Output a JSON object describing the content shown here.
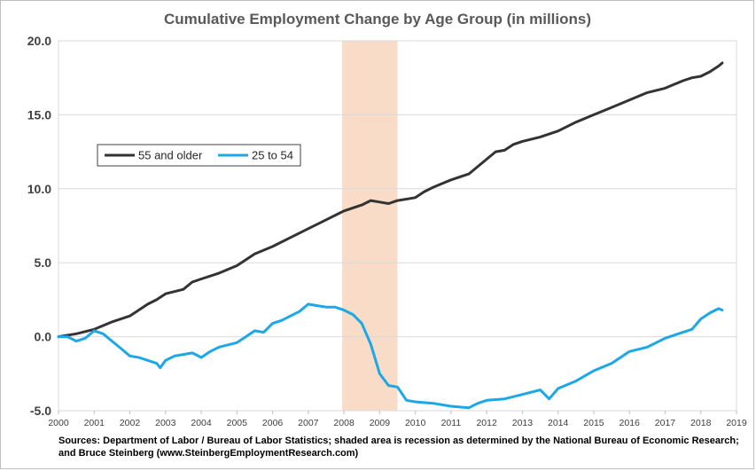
{
  "chart_data": {
    "type": "line",
    "title": "Cumulative Employment Change by Age Group (in millions)",
    "xlim": [
      2000,
      2019
    ],
    "ylim": [
      -5,
      20
    ],
    "x_ticks": [
      "2000",
      "2001",
      "2002",
      "2003",
      "2004",
      "2005",
      "2006",
      "2007",
      "2008",
      "2009",
      "2010",
      "2011",
      "2012",
      "2013",
      "2014",
      "2015",
      "2016",
      "2017",
      "2018",
      "2019"
    ],
    "y_ticks": [
      "20.0",
      "15.0",
      "10.0",
      "5.0",
      "0.0",
      "-5.0"
    ],
    "y_tick_values": [
      20,
      15,
      10,
      5,
      0,
      -5
    ],
    "grid": "horizontal",
    "legend_position": "upper-left",
    "recession_shading": {
      "start": 2007.95,
      "end": 2009.5,
      "color": "#f8dcc8"
    },
    "series": [
      {
        "name": "55 and older",
        "color": "#333333",
        "points": [
          [
            2000.0,
            0.0
          ],
          [
            2000.5,
            0.2
          ],
          [
            2001.0,
            0.5
          ],
          [
            2001.5,
            1.0
          ],
          [
            2002.0,
            1.4
          ],
          [
            2002.5,
            2.2
          ],
          [
            2002.75,
            2.5
          ],
          [
            2003.0,
            2.9
          ],
          [
            2003.5,
            3.2
          ],
          [
            2003.75,
            3.7
          ],
          [
            2004.0,
            3.9
          ],
          [
            2004.5,
            4.3
          ],
          [
            2005.0,
            4.8
          ],
          [
            2005.5,
            5.6
          ],
          [
            2006.0,
            6.1
          ],
          [
            2006.5,
            6.7
          ],
          [
            2007.0,
            7.3
          ],
          [
            2007.25,
            7.6
          ],
          [
            2007.5,
            7.9
          ],
          [
            2008.0,
            8.5
          ],
          [
            2008.5,
            8.9
          ],
          [
            2008.75,
            9.2
          ],
          [
            2009.0,
            9.1
          ],
          [
            2009.25,
            9.0
          ],
          [
            2009.5,
            9.2
          ],
          [
            2010.0,
            9.4
          ],
          [
            2010.25,
            9.8
          ],
          [
            2010.5,
            10.1
          ],
          [
            2011.0,
            10.6
          ],
          [
            2011.5,
            11.0
          ],
          [
            2012.0,
            12.0
          ],
          [
            2012.25,
            12.5
          ],
          [
            2012.5,
            12.6
          ],
          [
            2012.75,
            13.0
          ],
          [
            2013.0,
            13.2
          ],
          [
            2013.5,
            13.5
          ],
          [
            2014.0,
            13.9
          ],
          [
            2014.5,
            14.5
          ],
          [
            2015.0,
            15.0
          ],
          [
            2015.5,
            15.5
          ],
          [
            2016.0,
            16.0
          ],
          [
            2016.5,
            16.5
          ],
          [
            2017.0,
            16.8
          ],
          [
            2017.5,
            17.3
          ],
          [
            2017.75,
            17.5
          ],
          [
            2018.0,
            17.6
          ],
          [
            2018.25,
            17.9
          ],
          [
            2018.5,
            18.3
          ],
          [
            2018.6,
            18.5
          ]
        ]
      },
      {
        "name": "25 to 54",
        "color": "#1ca8e6",
        "points": [
          [
            2000.0,
            0.0
          ],
          [
            2000.25,
            0.0
          ],
          [
            2000.5,
            -0.3
          ],
          [
            2000.75,
            -0.1
          ],
          [
            2001.0,
            0.4
          ],
          [
            2001.25,
            0.2
          ],
          [
            2001.5,
            -0.3
          ],
          [
            2001.75,
            -0.8
          ],
          [
            2002.0,
            -1.3
          ],
          [
            2002.25,
            -1.4
          ],
          [
            2002.5,
            -1.6
          ],
          [
            2002.75,
            -1.8
          ],
          [
            2002.85,
            -2.1
          ],
          [
            2003.0,
            -1.6
          ],
          [
            2003.25,
            -1.3
          ],
          [
            2003.5,
            -1.2
          ],
          [
            2003.75,
            -1.1
          ],
          [
            2004.0,
            -1.4
          ],
          [
            2004.25,
            -1.0
          ],
          [
            2004.5,
            -0.7
          ],
          [
            2005.0,
            -0.4
          ],
          [
            2005.25,
            0.0
          ],
          [
            2005.5,
            0.4
          ],
          [
            2005.75,
            0.3
          ],
          [
            2006.0,
            0.9
          ],
          [
            2006.25,
            1.1
          ],
          [
            2006.5,
            1.4
          ],
          [
            2006.75,
            1.7
          ],
          [
            2007.0,
            2.2
          ],
          [
            2007.25,
            2.1
          ],
          [
            2007.5,
            2.0
          ],
          [
            2007.75,
            2.0
          ],
          [
            2008.0,
            1.8
          ],
          [
            2008.25,
            1.5
          ],
          [
            2008.5,
            0.9
          ],
          [
            2008.75,
            -0.5
          ],
          [
            2009.0,
            -2.5
          ],
          [
            2009.25,
            -3.3
          ],
          [
            2009.5,
            -3.4
          ],
          [
            2009.75,
            -4.3
          ],
          [
            2010.0,
            -4.4
          ],
          [
            2010.5,
            -4.5
          ],
          [
            2011.0,
            -4.7
          ],
          [
            2011.5,
            -4.8
          ],
          [
            2011.75,
            -4.5
          ],
          [
            2012.0,
            -4.3
          ],
          [
            2012.5,
            -4.2
          ],
          [
            2013.0,
            -3.9
          ],
          [
            2013.5,
            -3.6
          ],
          [
            2013.75,
            -4.2
          ],
          [
            2014.0,
            -3.5
          ],
          [
            2014.5,
            -3.0
          ],
          [
            2015.0,
            -2.3
          ],
          [
            2015.5,
            -1.8
          ],
          [
            2016.0,
            -1.0
          ],
          [
            2016.5,
            -0.7
          ],
          [
            2017.0,
            -0.1
          ],
          [
            2017.5,
            0.3
          ],
          [
            2017.75,
            0.5
          ],
          [
            2018.0,
            1.2
          ],
          [
            2018.25,
            1.6
          ],
          [
            2018.5,
            1.9
          ],
          [
            2018.6,
            1.8
          ]
        ]
      }
    ]
  },
  "footnote": {
    "line1": "Sources: Department of Labor / Bureau of Labor Statistics; shaded area is recession as determined by the National Bureau of Economic Research;",
    "line2": "and Bruce Steinberg (www.SteinbergEmploymentResearch.com)"
  }
}
